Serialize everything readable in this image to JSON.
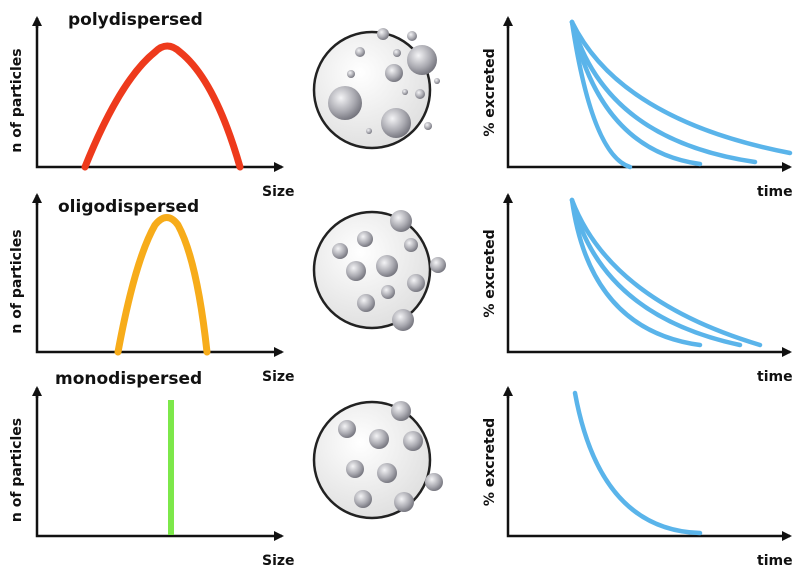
{
  "rows": [
    {
      "title": "polydispersed",
      "size_axis": {
        "x_label": "Size",
        "y_label": "n of particles"
      },
      "excretion_axis": {
        "x_label": "time",
        "y_label": "% excreted"
      }
    },
    {
      "title": "oligodispersed",
      "size_axis": {
        "x_label": "Size",
        "y_label": "n of particles"
      },
      "excretion_axis": {
        "x_label": "time",
        "y_label": "% excreted"
      }
    },
    {
      "title": "monodispersed",
      "size_axis": {
        "x_label": "Size",
        "y_label": "n of particles"
      },
      "excretion_axis": {
        "x_label": "time",
        "y_label": "% excreted"
      }
    }
  ]
}
